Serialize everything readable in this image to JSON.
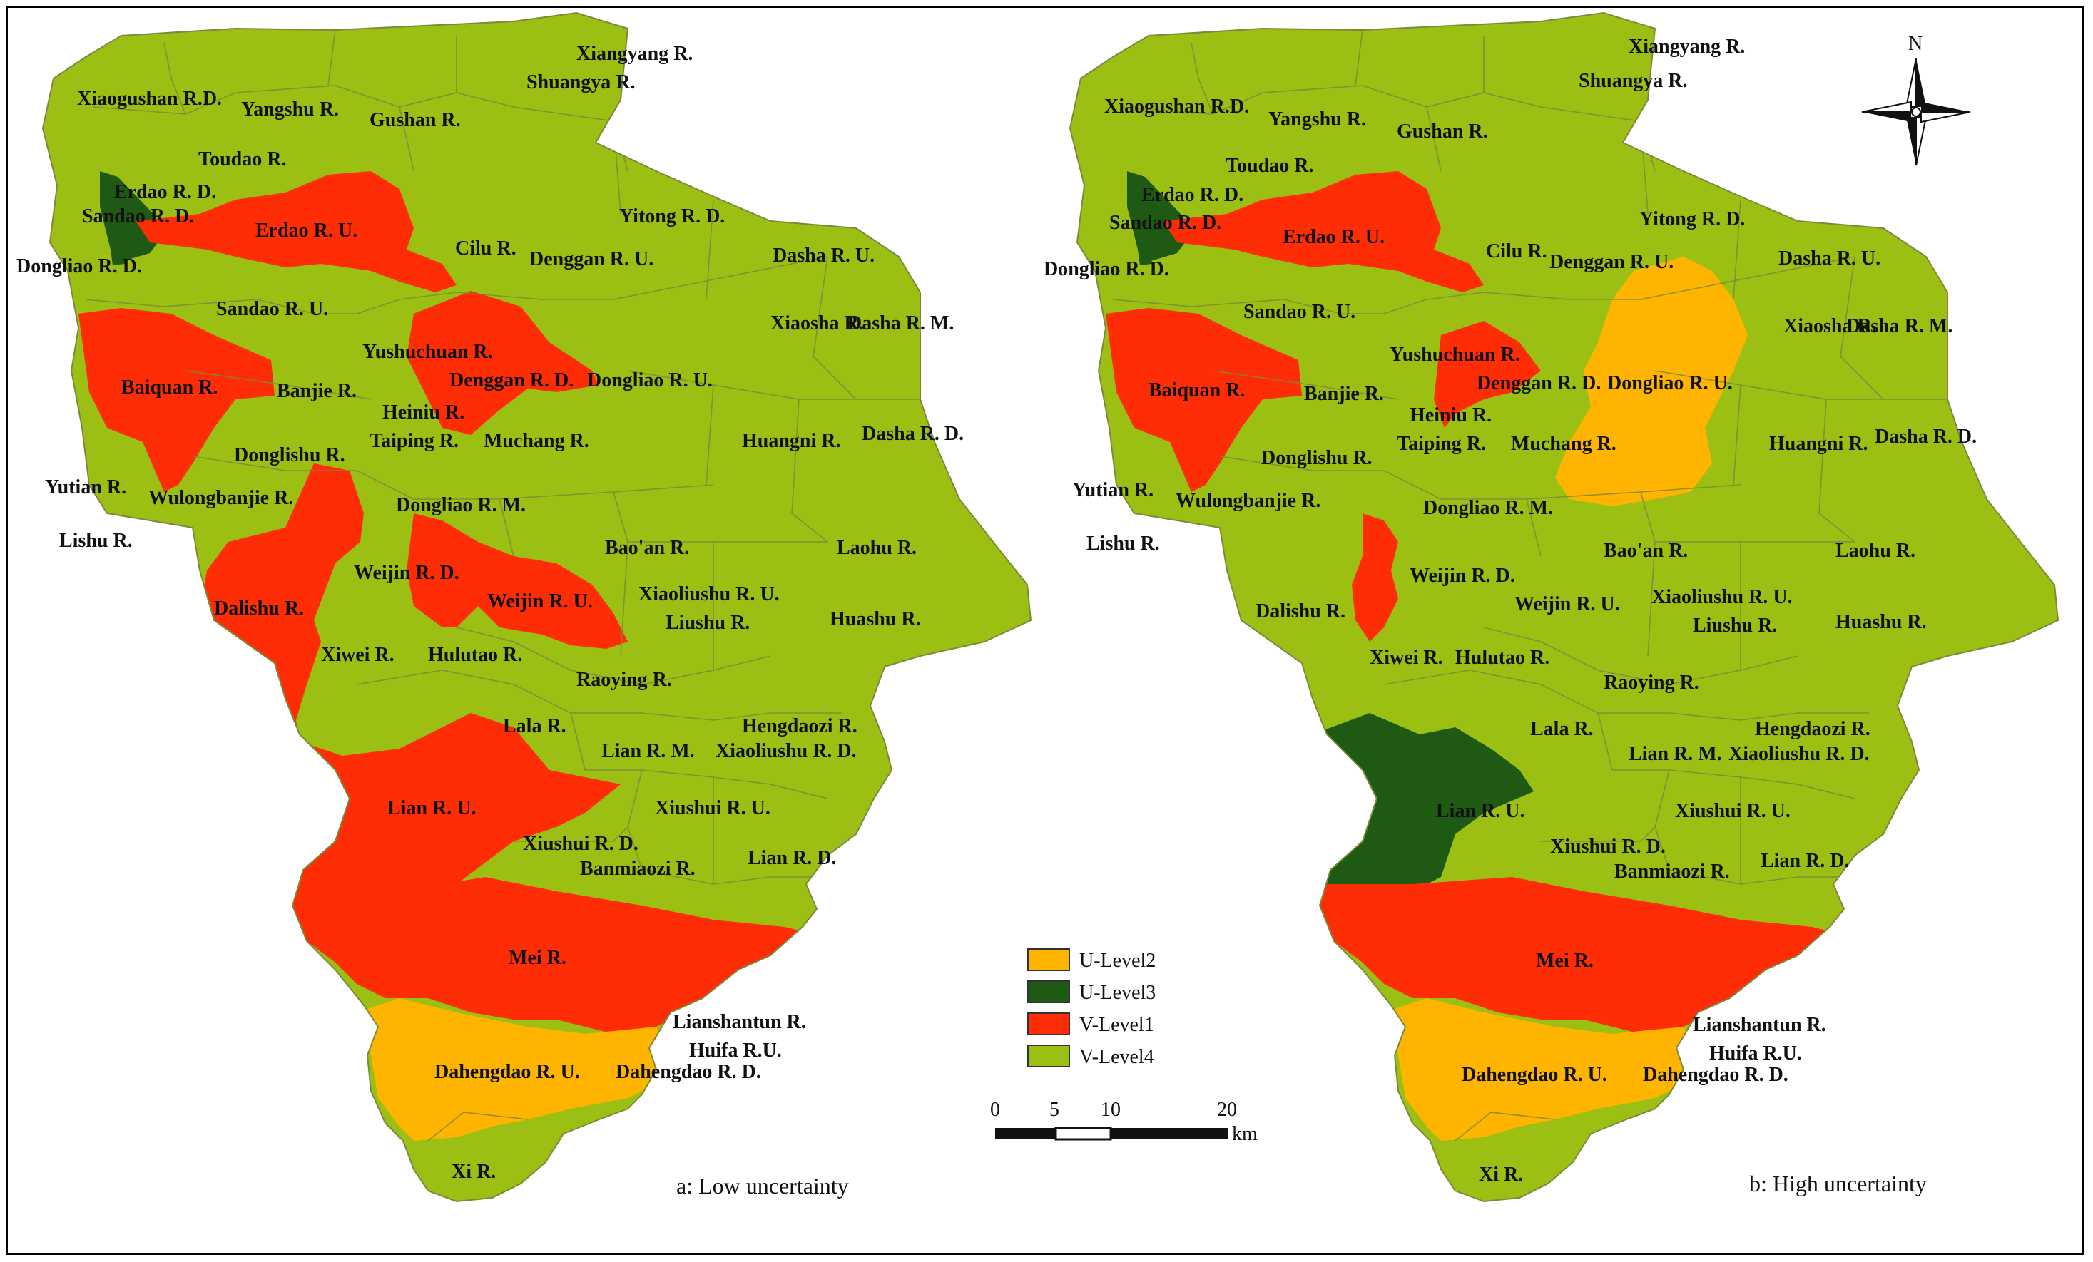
{
  "colors": {
    "u_level2": "#ffb400",
    "u_level3": "#1e5a14",
    "v_level1": "#ff2d06",
    "v_level4": "#9cbf14",
    "boundary": "#7a8a3a"
  },
  "maps": [
    {
      "caption": "a: Low uncertainty",
      "labels": [
        "Xiangyang R.",
        "Shuangya R.",
        "Xiaogushan R.D.",
        "Yangshu R.",
        "Gushan R.",
        "Toudao R.",
        "Erdao R. D.",
        "Sandao R. D.",
        "Erdao R. U.",
        "Yitong R. D.",
        "Cilu R.",
        "Denggan R. U.",
        "Dasha R. U.",
        "Dongliao R. D.",
        "Sandao R. U.",
        "Xiaosha R.",
        "Dasha R. M.",
        "Yushuchuan R.",
        "Denggan R. D.",
        "Dongliao R. U.",
        "Baiquan R.",
        "Banjie R.",
        "Heiniu R.",
        "Taiping R.",
        "Muchang R.",
        "Huangni R.",
        "Dasha R. D.",
        "Donglishu R.",
        "Yutian R.",
        "Wulongbanjie R.",
        "Dongliao R. M.",
        "Lishu R.",
        "Bao'an R.",
        "Laohu R.",
        "Weijin R. D.",
        "Weijin R. U.",
        "Xiaoliushu R. U.",
        "Dalishu R.",
        "Liushu R.",
        "Huashu R.",
        "Xiwei R.",
        "Hulutao R.",
        "Raoying R.",
        "Lala R.",
        "Hengdaozi R.",
        "Lian R. M.",
        "Xiaoliushu R. D.",
        "Lian R. U.",
        "Xiushui R. U.",
        "Xiushui R. D.",
        "Lian R. D.",
        "Banmiaozi R.",
        "Mei R.",
        "Lianshantun R.",
        "Huifa R.U.",
        "Dahengdao R. U.",
        "Dahengdao R. D.",
        "Xi R."
      ]
    },
    {
      "caption": "b: High uncertainty",
      "labels": [
        "Xiangyang R.",
        "Shuangya R.",
        "Xiaogushan R.D.",
        "Yangshu R.",
        "Gushan R.",
        "Toudao R.",
        "Erdao R. D.",
        "Sandao R. D.",
        "Erdao R. U.",
        "Yitong R. D.",
        "Cilu R.",
        "Denggan R. U.",
        "Dasha R. U.",
        "Dongliao R. D.",
        "Sandao R. U.",
        "Xiaosha R.",
        "Dasha R. M.",
        "Yushuchuan R.",
        "Denggan R. D.",
        "Dongliao R. U.",
        "Baiquan R.",
        "Banjie R.",
        "Heiniu R.",
        "Taiping R.",
        "Muchang R.",
        "Huangni R.",
        "Dasha R. D.",
        "Donglishu R.",
        "Yutian R.",
        "Wulongbanjie R.",
        "Dongliao R. M.",
        "Lishu R.",
        "Bao'an R.",
        "Laohu R.",
        "Weijin R. D.",
        "Weijin R. U.",
        "Xiaoliushu R. U.",
        "Dalishu R.",
        "Liushu R.",
        "Huashu R.",
        "Xiwei R.",
        "Hulutao R.",
        "Raoying R.",
        "Lala R.",
        "Hengdaozi R.",
        "Lian R. M.",
        "Xiaoliushu R. D.",
        "Lian R. U.",
        "Xiushui R. U.",
        "Xiushui R. D.",
        "Lian R. D.",
        "Banmiaozi R.",
        "Mei R.",
        "Lianshantun R.",
        "Huifa R.U.",
        "Dahengdao R. U.",
        "Dahengdao R. D.",
        "Xi R."
      ]
    }
  ],
  "legend": [
    {
      "label": "U-Level2",
      "color": "#ffb400"
    },
    {
      "label": "U-Level3",
      "color": "#1e5a14"
    },
    {
      "label": "V-Level1",
      "color": "#ff2d06"
    },
    {
      "label": "V-Level4",
      "color": "#9cbf14"
    }
  ],
  "scale_bar": {
    "ticks": [
      "0",
      "5",
      "10",
      "20"
    ],
    "unit": "km"
  },
  "north_label": "N"
}
